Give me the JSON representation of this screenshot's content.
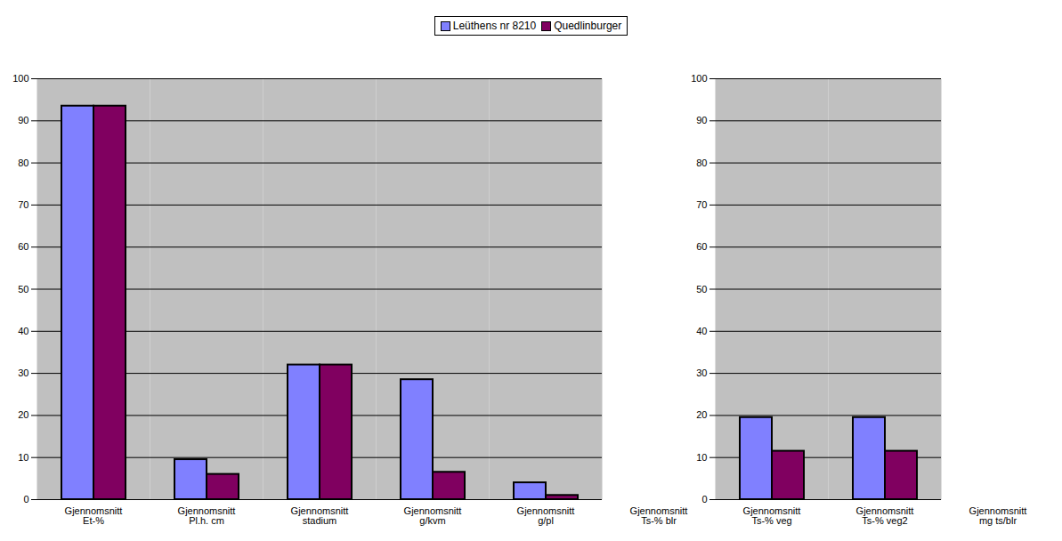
{
  "chart_data": {
    "type": "bar",
    "categories": [
      "Gjennomsnitt Et-%",
      "Gjennomsnitt Pl.h. cm",
      "Gjennomsnitt stadium",
      "Gjennomsnitt g/kvm",
      "Gjennomsnitt g/pl",
      "Gjennomsnitt Ts-% blr",
      "Gjennomsnitt Ts-% veg",
      "Gjennomsnitt Ts-% veg2",
      "Gjennomsnitt mg ts/blr"
    ],
    "series": [
      {
        "name": "Leüthens nr 8210",
        "color": "#8080ff",
        "values": [
          93.5,
          9.5,
          32,
          28.5,
          4,
          null,
          19.5,
          19.5,
          null
        ]
      },
      {
        "name": "Quedlinburger",
        "color": "#800060",
        "values": [
          93.5,
          6,
          32,
          6.5,
          1,
          null,
          11.5,
          11.5,
          null
        ]
      }
    ],
    "ylim": [
      0,
      100
    ],
    "yticks": [
      0,
      10,
      20,
      30,
      40,
      50,
      60,
      70,
      80,
      90,
      100
    ],
    "grid": true,
    "legend": "top"
  }
}
